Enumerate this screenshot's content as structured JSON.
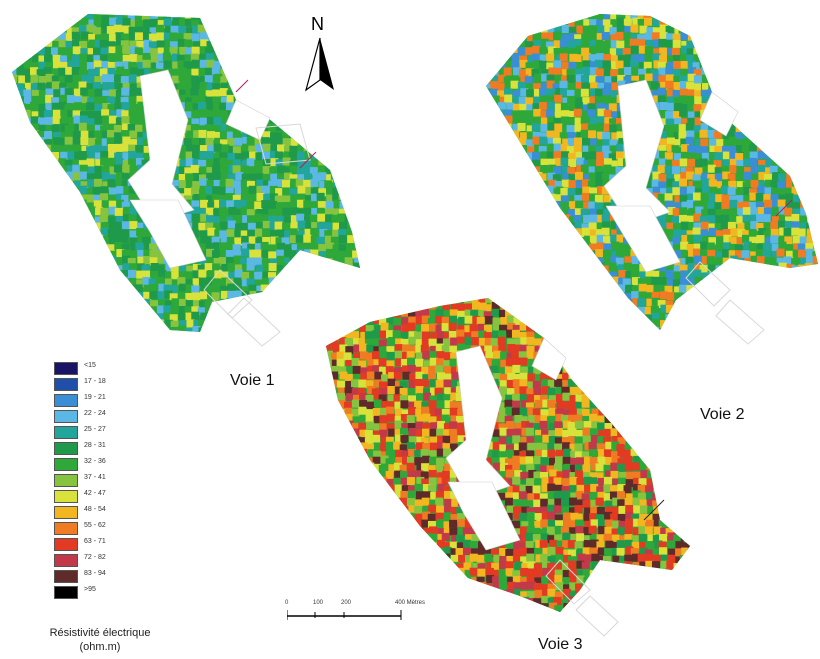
{
  "north_label": "N",
  "panels": [
    {
      "label": "Voie 1",
      "palette_bias": "low"
    },
    {
      "label": "Voie 2",
      "palette_bias": "mid"
    },
    {
      "label": "Voie 3",
      "palette_bias": "high"
    }
  ],
  "legend": {
    "title_line1": "Résistivité électrique",
    "title_line2": "(ohm.m)",
    "classes": [
      {
        "label": "<15",
        "color": "#1b1464"
      },
      {
        "label": "17 - 18",
        "color": "#1f4fa8"
      },
      {
        "label": "19 - 21",
        "color": "#3a8ed6"
      },
      {
        "label": "22 - 24",
        "color": "#5bb8e4"
      },
      {
        "label": "25 - 27",
        "color": "#22a59a"
      },
      {
        "label": "28 - 31",
        "color": "#1f9a4b"
      },
      {
        "label": "32 - 36",
        "color": "#2fa83a"
      },
      {
        "label": "37 - 41",
        "color": "#86c440"
      },
      {
        "label": "42 - 47",
        "color": "#d9e23a"
      },
      {
        "label": "48 - 54",
        "color": "#f2b620"
      },
      {
        "label": "55 - 62",
        "color": "#ef7b22"
      },
      {
        "label": "63 - 71",
        "color": "#e23a23"
      },
      {
        "label": "72 - 82",
        "color": "#c23a4a"
      },
      {
        "label": "83 - 94",
        "color": "#5e2a2a"
      },
      {
        "label": ">95",
        "color": "#000000"
      }
    ]
  },
  "scale_bar": {
    "ticks": [
      "0",
      "100",
      "200",
      "400 Mètres"
    ]
  }
}
